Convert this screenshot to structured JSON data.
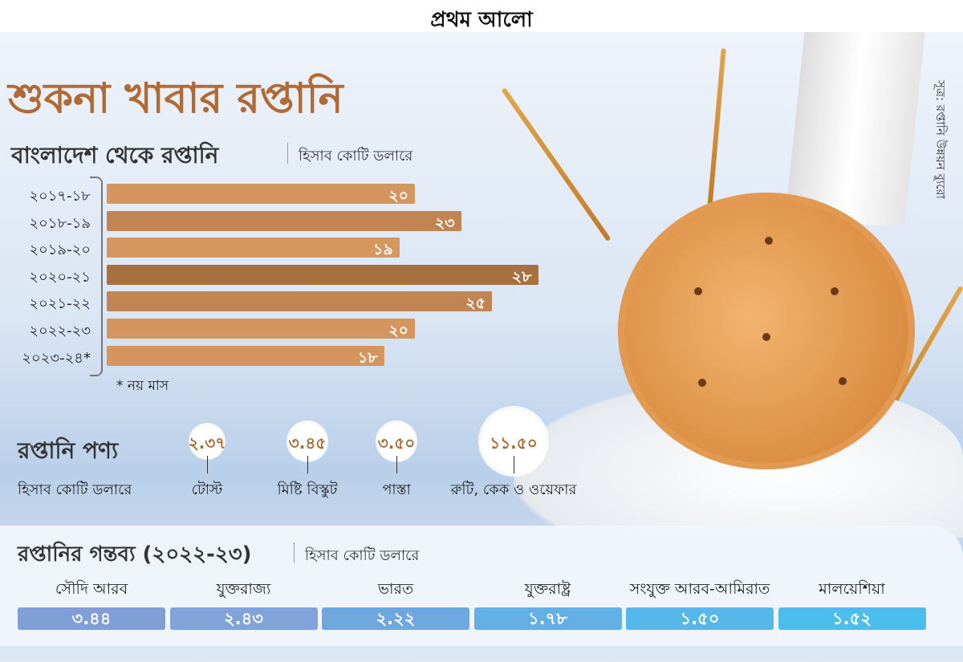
{
  "logo": "প্রথম আলো",
  "title": "শুকনা খাবার রপ্তানি",
  "source": "সূত্র: রপ্তানি উন্নয়ন ব্যুরো",
  "chart_data": {
    "type": "bar",
    "orientation": "horizontal",
    "title": "বাংলাদেশ থেকে রপ্তানি",
    "unit": "হিসাব কোটি ডলারে",
    "categories": [
      "২০১৭-১৮",
      "২০১৮-১৯",
      "২০১৯-২০",
      "২০২০-২১",
      "২০২১-২২",
      "২০২২-২৩",
      "২০২৩-২৪*"
    ],
    "values": [
      20,
      23,
      19,
      28,
      25,
      20,
      18
    ],
    "value_labels": [
      "২০",
      "২৩",
      "১৯",
      "২৮",
      "২৫",
      "২০",
      "১৮"
    ],
    "colors": [
      "#d4955f",
      "#c08552",
      "#d4985f",
      "#a8703f",
      "#c08552",
      "#d4955f",
      "#d4955f"
    ],
    "note": "* নয় মাস",
    "grid": false
  },
  "products": {
    "title": "রপ্তানি পণ্য",
    "unit": "হিসাব কোটি ডলারে",
    "items": [
      {
        "value": "২.৩৭",
        "label": "টোস্ট"
      },
      {
        "value": "৩.৪৫",
        "label": "মিষ্টি বিস্কুট"
      },
      {
        "value": "৩.৫০",
        "label": "পাস্তা"
      },
      {
        "value": "১১.৫০",
        "label": "রুটি, কেক ও ওয়েফার"
      }
    ]
  },
  "destinations": {
    "title": "রপ্তানির গন্তব্য (২০২২-২৩)",
    "unit": "হিসাব কোটি ডলারে",
    "items": [
      {
        "country": "সৌদি আরব",
        "value": "৩.৪৪",
        "color": "#7f9fd6"
      },
      {
        "country": "যুক্তরাজ্য",
        "value": "২.৪৩",
        "color": "#80a3da"
      },
      {
        "country": "ভারত",
        "value": "২.২২",
        "color": "#6fa8e0"
      },
      {
        "country": "যুক্তরাষ্ট্র",
        "value": "১.৭৮",
        "color": "#62b0e6"
      },
      {
        "country": "সংযুক্ত আরব-আমিরাত",
        "value": "১.৫০",
        "color": "#56b7ea"
      },
      {
        "country": "মালয়েশিয়া",
        "value": "১.৫২",
        "color": "#4bbeed"
      }
    ]
  }
}
